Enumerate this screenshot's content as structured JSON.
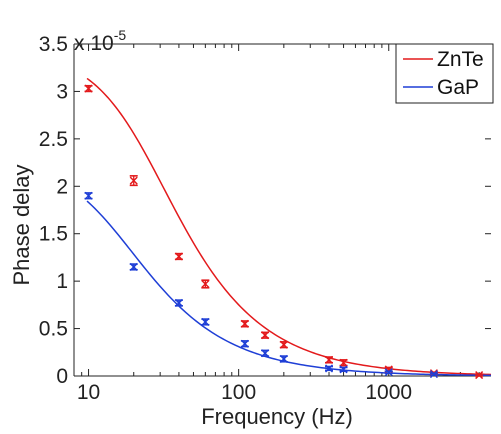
{
  "chart_data": {
    "type": "scatter",
    "xlabel": "Frequency (Hz)",
    "ylabel": "Phase delay",
    "xscale": "log",
    "xlim": [
      8,
      4800
    ],
    "ylim": [
      0,
      3.5
    ],
    "y_multiplier_base": "x 10",
    "y_multiplier_exp": "-5",
    "xticks": [
      10,
      100,
      1000
    ],
    "xtick_labels": [
      "10",
      "100",
      "1000"
    ],
    "yticks": [
      0,
      0.5,
      1,
      1.5,
      2,
      2.5,
      3,
      3.5
    ],
    "ytick_labels": [
      "0",
      "0.5",
      "1",
      "1.5",
      "2",
      "2.5",
      "3",
      "3.5"
    ],
    "legend": {
      "position": "top-right",
      "entries": [
        "ZnTe",
        "GaP"
      ]
    },
    "series": [
      {
        "name": "ZnTe",
        "color": "#e31a1c",
        "points": [
          {
            "x": 10,
            "y": 3.03,
            "err": 0.03
          },
          {
            "x": 20,
            "y": 2.06,
            "err": 0.05
          },
          {
            "x": 40,
            "y": 1.26,
            "err": 0.03
          },
          {
            "x": 60,
            "y": 0.97,
            "err": 0.04
          },
          {
            "x": 110,
            "y": 0.55,
            "err": 0.03
          },
          {
            "x": 150,
            "y": 0.43,
            "err": 0.03
          },
          {
            "x": 200,
            "y": 0.33,
            "err": 0.03
          },
          {
            "x": 400,
            "y": 0.17,
            "err": 0.03
          },
          {
            "x": 500,
            "y": 0.14,
            "err": 0.03
          },
          {
            "x": 1000,
            "y": 0.07,
            "err": 0.02
          },
          {
            "x": 2000,
            "y": 0.03,
            "err": 0.01
          },
          {
            "x": 4000,
            "y": 0.01,
            "err": 0.01
          }
        ],
        "fit": {
          "A": 3.42,
          "f0": 22.5
        }
      },
      {
        "name": "GaP",
        "color": "#1f3fd6",
        "points": [
          {
            "x": 10,
            "y": 1.9,
            "err": 0.03
          },
          {
            "x": 20,
            "y": 1.15,
            "err": 0.03
          },
          {
            "x": 40,
            "y": 0.77,
            "err": 0.03
          },
          {
            "x": 60,
            "y": 0.57,
            "err": 0.03
          },
          {
            "x": 110,
            "y": 0.34,
            "err": 0.03
          },
          {
            "x": 150,
            "y": 0.24,
            "err": 0.03
          },
          {
            "x": 200,
            "y": 0.18,
            "err": 0.03
          },
          {
            "x": 400,
            "y": 0.08,
            "err": 0.02
          },
          {
            "x": 500,
            "y": 0.07,
            "err": 0.02
          },
          {
            "x": 1000,
            "y": 0.04,
            "err": 0.01
          },
          {
            "x": 2000,
            "y": 0.02,
            "err": 0.01
          }
        ],
        "fit": {
          "A": 2.26,
          "f0": 13.8
        }
      }
    ]
  }
}
